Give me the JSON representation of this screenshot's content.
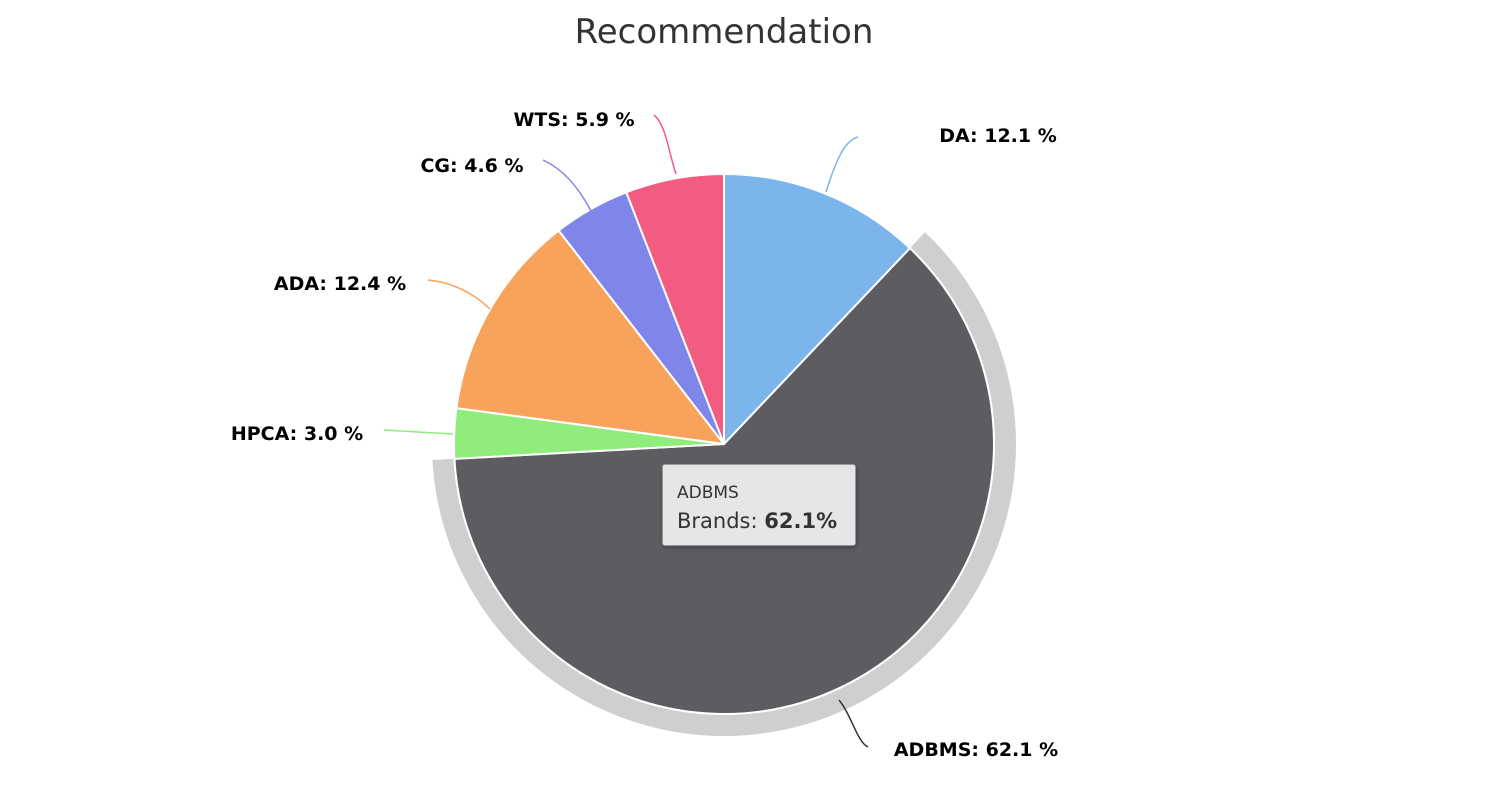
{
  "chart_data": {
    "type": "pie",
    "title": "Recommendation",
    "unit": "%",
    "slices": [
      {
        "name": "DA",
        "value": 12.1,
        "color": "#7cb5ec"
      },
      {
        "name": "ADBMS",
        "value": 62.1,
        "color": "#5c5c61",
        "selected": true
      },
      {
        "name": "HPCA",
        "value": 3.0,
        "color": "#90ed7d"
      },
      {
        "name": "ADA",
        "value": 12.4,
        "color": "#f7a35c"
      },
      {
        "name": "CG",
        "value": 4.6,
        "color": "#8085e9"
      },
      {
        "name": "WTS",
        "value": 5.9,
        "color": "#f15c80"
      }
    ],
    "data_labels": [
      "DA: 12.1 %",
      "ADBMS: 62.1 %",
      "HPCA: 3.0 %",
      "ADA: 12.4 %",
      "CG: 4.6 %",
      "WTS: 5.9 %"
    ]
  },
  "tooltip": {
    "series": "ADBMS",
    "label": "Brands: ",
    "value": "62.1%"
  }
}
